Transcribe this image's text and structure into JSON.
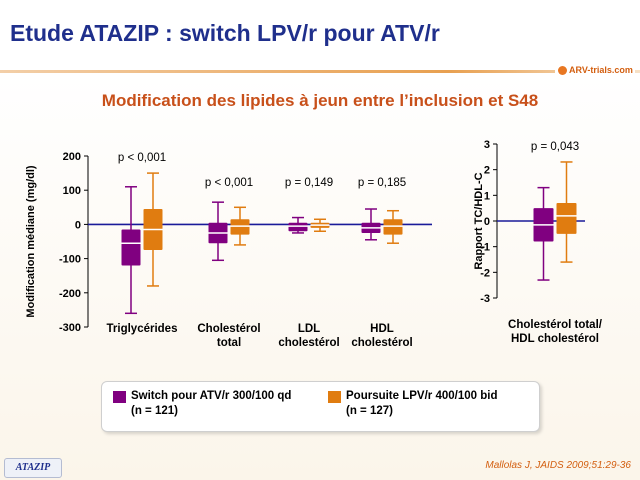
{
  "title": "Etude ATAZIP : switch LPV/r pour ATV/r",
  "subtitle": "Modification des lipides à jeun entre l’inclusion et S48",
  "logo_text": "ARV-trials.com",
  "colors": {
    "switch": "#800080",
    "poursuite": "#e07c10",
    "title": "#1f2f8c",
    "subtitle": "#c8501a"
  },
  "legend": [
    {
      "series": "switch",
      "line1": "Switch pour ATV/r 300/100 qd",
      "line2": "(n = 121)"
    },
    {
      "series": "poursuite",
      "line1": "Poursuite LPV/r 400/100 bid",
      "line2": "(n = 127)"
    }
  ],
  "footer": {
    "tag": "ATAZIP",
    "reference": "Mallolas J, JAIDS 2009;51:29-36"
  },
  "chart_data": [
    {
      "type": "box",
      "ylabel": "Modification médiane (mg/dl)",
      "ylim": [
        -300,
        200
      ],
      "yticks": [
        200,
        100,
        0,
        -100,
        -200,
        -300
      ],
      "yticks_labels": [
        "200",
        "100",
        "0",
        "-100",
        "-200",
        "-300"
      ],
      "series_order": [
        "switch",
        "poursuite"
      ],
      "groups": [
        {
          "label_lines": [
            "Triglycérides"
          ],
          "pvalue": "p < 0,001",
          "boxes": [
            {
              "series": "switch",
              "min": -260,
              "q1": -120,
              "median": -55,
              "q3": -15,
              "max": 110
            },
            {
              "series": "poursuite",
              "min": -180,
              "q1": -75,
              "median": -15,
              "q3": 45,
              "max": 150
            }
          ]
        },
        {
          "label_lines": [
            "Cholestérol",
            "total"
          ],
          "pvalue": "p < 0,001",
          "boxes": [
            {
              "series": "switch",
              "min": -105,
              "q1": -55,
              "median": -25,
              "q3": 5,
              "max": 65
            },
            {
              "series": "poursuite",
              "min": -60,
              "q1": -30,
              "median": -5,
              "q3": 15,
              "max": 50
            }
          ]
        },
        {
          "label_lines": [
            "LDL",
            "cholestérol"
          ],
          "pvalue": "p = 0,149",
          "boxes": [
            {
              "series": "switch",
              "min": -25,
              "q1": -20,
              "median": -5,
              "q3": 5,
              "max": 20
            },
            {
              "series": "poursuite",
              "min": -20,
              "q1": -10,
              "median": -2,
              "q3": 5,
              "max": 15
            }
          ]
        },
        {
          "label_lines": [
            "HDL",
            "cholestérol"
          ],
          "pvalue": "p = 0,185",
          "boxes": [
            {
              "series": "switch",
              "min": -45,
              "q1": -25,
              "median": -10,
              "q3": 5,
              "max": 45
            },
            {
              "series": "poursuite",
              "min": -55,
              "q1": -30,
              "median": -5,
              "q3": 15,
              "max": 40
            }
          ]
        }
      ]
    },
    {
      "type": "box",
      "ylabel": "Rapport TC/HDL-C",
      "ylim": [
        -3,
        3
      ],
      "yticks": [
        3,
        2,
        1,
        0,
        -1,
        -2,
        -3
      ],
      "yticks_labels": [
        "3",
        "2",
        "1",
        "0",
        "-1",
        "-2",
        "-3"
      ],
      "series_order": [
        "switch",
        "poursuite"
      ],
      "groups": [
        {
          "label_lines": [
            "Cholestérol total/",
            "HDL cholestérol"
          ],
          "pvalue": "p = 0,043",
          "boxes": [
            {
              "series": "switch",
              "min": -2.3,
              "q1": -0.8,
              "median": -0.15,
              "q3": 0.5,
              "max": 1.3
            },
            {
              "series": "poursuite",
              "min": -1.6,
              "q1": -0.5,
              "median": 0.2,
              "q3": 0.7,
              "max": 2.3
            }
          ]
        }
      ]
    }
  ]
}
